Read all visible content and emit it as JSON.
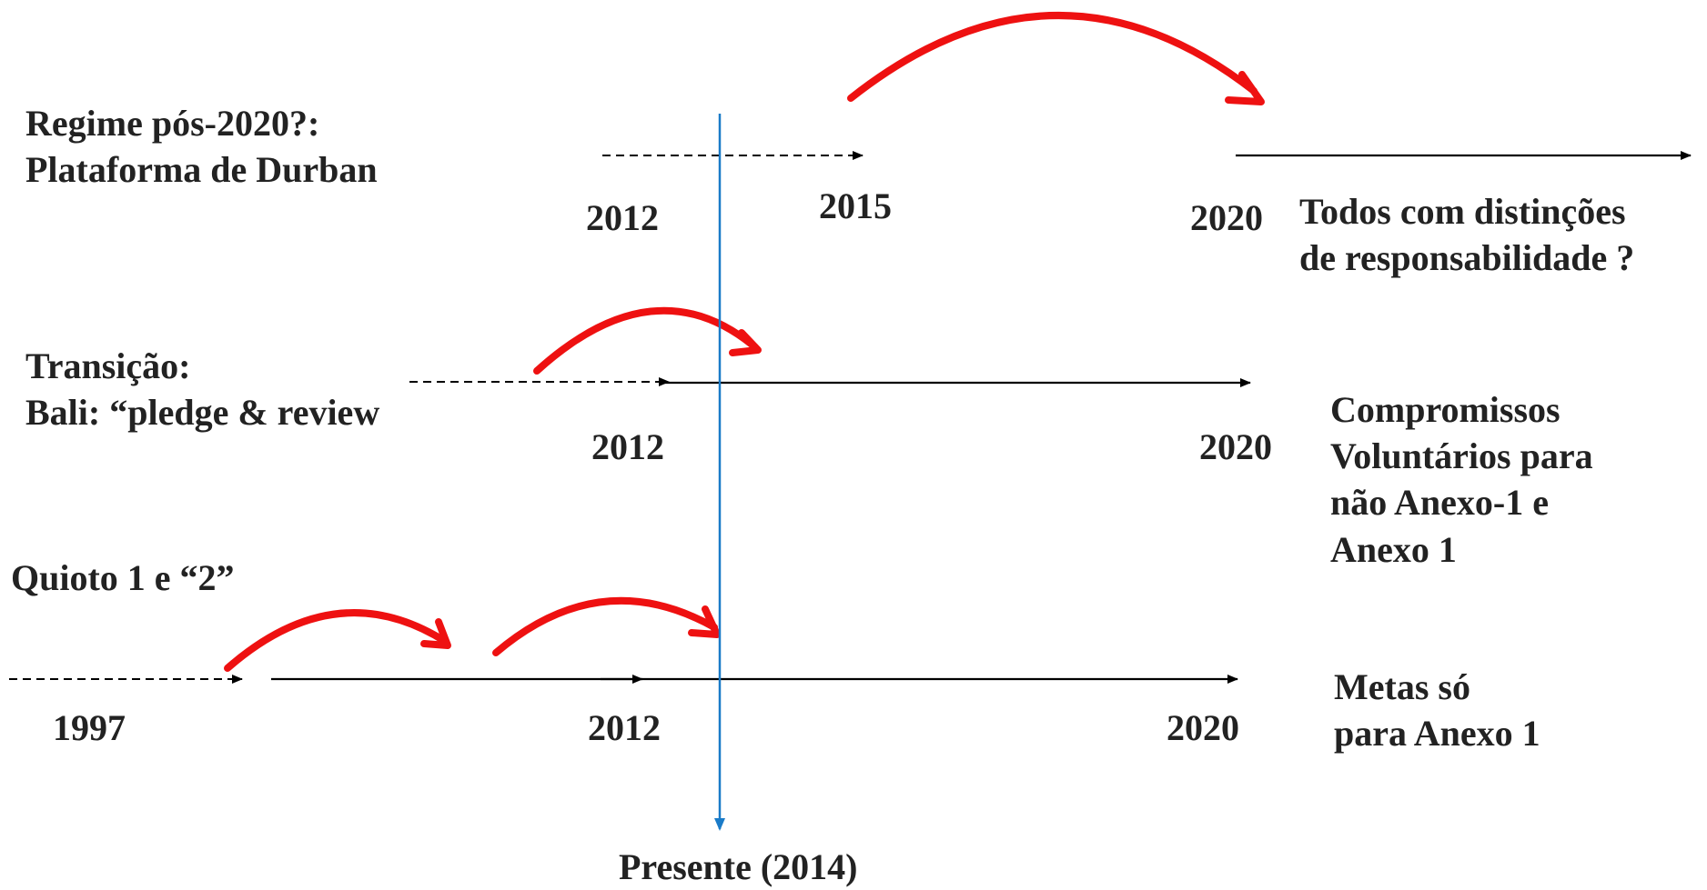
{
  "colors": {
    "text": "#222222",
    "timeline": "#000000",
    "transition_arrow": "#ee1111",
    "present_line": "#1a7bc8"
  },
  "rows": {
    "post2020": {
      "title_lines": [
        "Regime pós-2020?:",
        "Plataforma de Durban"
      ],
      "years": [
        "2012",
        "2015",
        "2020"
      ],
      "outcome_lines": [
        "Todos com distinções",
        "de responsabilidade ?"
      ]
    },
    "transition": {
      "title_lines": [
        "Transição:",
        "Bali: “pledge & review"
      ],
      "years": [
        "2012",
        "2020"
      ],
      "outcome_lines": [
        "Compromissos",
        "Voluntários para",
        "não Anexo-1 e",
        "Anexo 1"
      ]
    },
    "kyoto": {
      "title_lines": [
        "Quioto 1 e “2”"
      ],
      "years": [
        "1997",
        "2012",
        "2020"
      ],
      "outcome_lines": [
        "Metas só",
        "para Anexo 1"
      ]
    }
  },
  "present": {
    "label": "Presente (2014)",
    "year": 2014
  }
}
